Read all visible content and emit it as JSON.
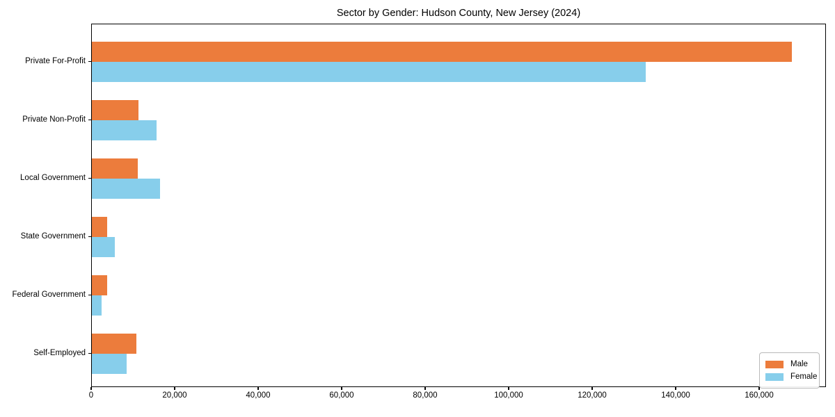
{
  "chart_data": {
    "type": "bar",
    "orientation": "horizontal",
    "title": "Sector by Gender: Hudson County, New Jersey (2024)",
    "categories": [
      "Private For-Profit",
      "Private Non-Profit",
      "Local Government",
      "State Government",
      "Federal Government",
      "Self-Employed"
    ],
    "series": [
      {
        "name": "Male",
        "color": "#ec7c3c",
        "values": [
          167600,
          11100,
          11000,
          3700,
          3600,
          10700
        ]
      },
      {
        "name": "Female",
        "color": "#87ceeb",
        "values": [
          132600,
          15500,
          16400,
          5500,
          2400,
          8300
        ]
      }
    ],
    "xlabel": "",
    "ylabel": "",
    "xlim": [
      0,
      176000
    ],
    "xticks": [
      {
        "value": 0,
        "label": "0"
      },
      {
        "value": 20000,
        "label": "20,000"
      },
      {
        "value": 40000,
        "label": "40,000"
      },
      {
        "value": 60000,
        "label": "60,000"
      },
      {
        "value": 80000,
        "label": "80,000"
      },
      {
        "value": 100000,
        "label": "100,000"
      },
      {
        "value": 120000,
        "label": "120,000"
      },
      {
        "value": 140000,
        "label": "140,000"
      },
      {
        "value": 160000,
        "label": "160,000"
      }
    ],
    "grid": false,
    "frame": true,
    "legend": {
      "position": "lower right"
    },
    "colors": {
      "male": "#ec7c3c",
      "female": "#87ceeb",
      "axis": "#000000",
      "background": "#ffffff"
    }
  }
}
